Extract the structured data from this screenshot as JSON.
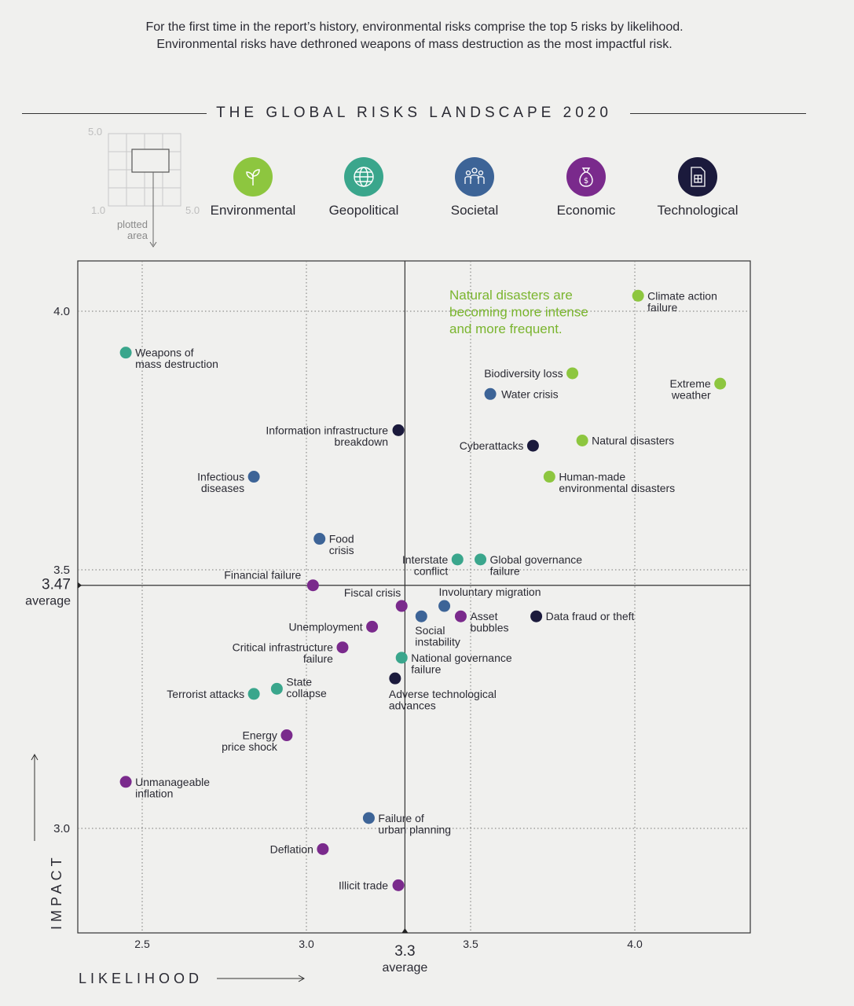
{
  "intro": {
    "line1": "For the first time in the report’s history, environmental risks comprise the top 5 risks by likelihood.",
    "line2": "Environmental risks have dethroned weapons of mass destruction as the most impactful risk."
  },
  "title": "THE GLOBAL RISKS LANDSCAPE 2020",
  "mini_guide": {
    "top": "5.0",
    "bottom": "1.0",
    "right": "5.0",
    "caption1": "plotted",
    "caption2": "area"
  },
  "legend": [
    {
      "name": "Environmental",
      "color": "#8dc63f",
      "icon": "leaf-icon"
    },
    {
      "name": "Geopolitical",
      "color": "#3aa68c",
      "icon": "globe-icon"
    },
    {
      "name": "Societal",
      "color": "#3d6497",
      "icon": "people-icon"
    },
    {
      "name": "Economic",
      "color": "#7a2a8c",
      "icon": "money-bag-icon"
    },
    {
      "name": "Technological",
      "color": "#1b1a3c",
      "icon": "chip-icon"
    }
  ],
  "chart_data": {
    "type": "scatter",
    "xlabel": "LIKELIHOOD",
    "ylabel": "IMPACT",
    "xlim": [
      2.3,
      4.35
    ],
    "ylim": [
      2.8,
      4.1
    ],
    "xticks": [
      "2.5",
      "3.0",
      "3.5",
      "4.0"
    ],
    "yticks": [
      "3.0",
      "3.5",
      "4.0"
    ],
    "x_average": {
      "value": 3.3,
      "label": "3.3",
      "sublabel": "average"
    },
    "y_average": {
      "value": 3.47,
      "label": "3.47",
      "sublabel": "average"
    },
    "annotation": "Natural disasters are becoming more intense and more frequent.",
    "points": [
      {
        "name": "Climate action failure",
        "x": 4.01,
        "y": 4.03,
        "category": "Environmental"
      },
      {
        "name": "Weapons of mass destruction",
        "x": 2.45,
        "y": 3.92,
        "category": "Geopolitical"
      },
      {
        "name": "Biodiversity loss",
        "x": 3.81,
        "y": 3.88,
        "category": "Environmental"
      },
      {
        "name": "Extreme weather",
        "x": 4.26,
        "y": 3.86,
        "category": "Environmental"
      },
      {
        "name": "Water crisis",
        "x": 3.56,
        "y": 3.84,
        "category": "Societal"
      },
      {
        "name": "Information infrastructure breakdown",
        "x": 3.28,
        "y": 3.77,
        "category": "Technological"
      },
      {
        "name": "Natural disasters",
        "x": 3.84,
        "y": 3.75,
        "category": "Environmental"
      },
      {
        "name": "Cyberattacks",
        "x": 3.69,
        "y": 3.74,
        "category": "Technological"
      },
      {
        "name": "Human-made environmental disasters",
        "x": 3.74,
        "y": 3.68,
        "category": "Environmental"
      },
      {
        "name": "Infectious diseases",
        "x": 2.84,
        "y": 3.68,
        "category": "Societal"
      },
      {
        "name": "Food crisis",
        "x": 3.04,
        "y": 3.56,
        "category": "Societal"
      },
      {
        "name": "Interstate conflict",
        "x": 3.46,
        "y": 3.52,
        "category": "Geopolitical"
      },
      {
        "name": "Global governance failure",
        "x": 3.53,
        "y": 3.52,
        "category": "Geopolitical"
      },
      {
        "name": "Financial failure",
        "x": 3.02,
        "y": 3.47,
        "category": "Economic"
      },
      {
        "name": "Fiscal crisis",
        "x": 3.29,
        "y": 3.43,
        "category": "Economic"
      },
      {
        "name": "Involuntary migration",
        "x": 3.42,
        "y": 3.43,
        "category": "Societal"
      },
      {
        "name": "Social instability",
        "x": 3.35,
        "y": 3.41,
        "category": "Societal"
      },
      {
        "name": "Asset bubbles",
        "x": 3.47,
        "y": 3.41,
        "category": "Economic"
      },
      {
        "name": "Data fraud or theft",
        "x": 3.7,
        "y": 3.41,
        "category": "Technological"
      },
      {
        "name": "Unemployment",
        "x": 3.2,
        "y": 3.39,
        "category": "Economic"
      },
      {
        "name": "Critical infrastructure failure",
        "x": 3.11,
        "y": 3.35,
        "category": "Economic"
      },
      {
        "name": "National governance failure",
        "x": 3.29,
        "y": 3.33,
        "category": "Geopolitical"
      },
      {
        "name": "Adverse technological advances",
        "x": 3.27,
        "y": 3.29,
        "category": "Technological"
      },
      {
        "name": "State collapse",
        "x": 2.91,
        "y": 3.27,
        "category": "Geopolitical"
      },
      {
        "name": "Terrorist attacks",
        "x": 2.84,
        "y": 3.26,
        "category": "Geopolitical"
      },
      {
        "name": "Energy price shock",
        "x": 2.94,
        "y": 3.18,
        "category": "Economic"
      },
      {
        "name": "Unmanageable inflation",
        "x": 2.45,
        "y": 3.09,
        "category": "Economic"
      },
      {
        "name": "Failure of urban planning",
        "x": 3.19,
        "y": 3.02,
        "category": "Societal"
      },
      {
        "name": "Deflation",
        "x": 3.05,
        "y": 2.96,
        "category": "Economic"
      },
      {
        "name": "Illicit trade",
        "x": 3.28,
        "y": 2.89,
        "category": "Economic"
      }
    ]
  }
}
